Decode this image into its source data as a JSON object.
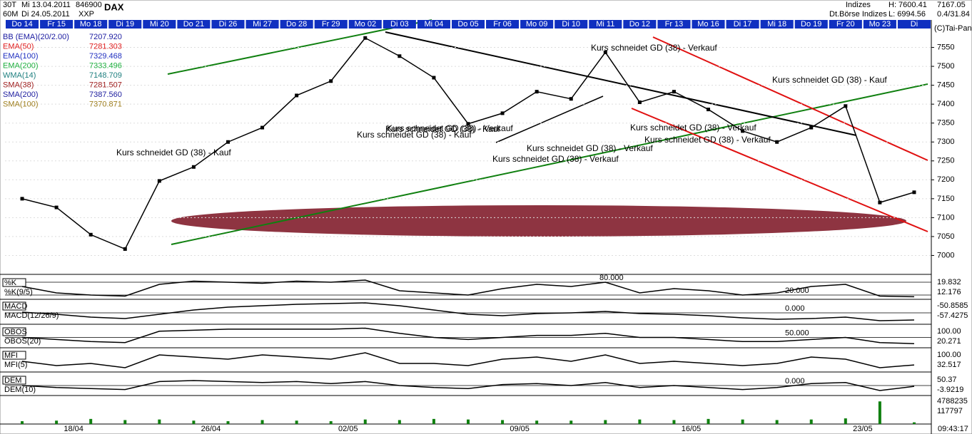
{
  "header": {
    "period": "30T",
    "from": "Mi 13.04.2011",
    "wkn": "846900",
    "symbol": "DAX",
    "interval": "60M",
    "to": "Di 24.05.2011",
    "exchange": "XXP",
    "group": "Indizes",
    "high": "H: 7600.41",
    "last": "7167.05",
    "source": "Dt.Börse Indizes",
    "low": "L: 6994.56",
    "change": "0.4/31.84",
    "copyright": "(C)Tai-Pan",
    "time": "09:43:17"
  },
  "chart_data": [
    {
      "type": "line",
      "color": "#000000",
      "categories": [
        "Do 14",
        "Fr 15",
        "Mo 18",
        "Di 19",
        "Mi 20",
        "Do 21",
        "Di 26",
        "Mi 27",
        "Do 28",
        "Fr 29",
        "Mo 02",
        "Di 03",
        "Mi 04",
        "Do 05",
        "Fr 06",
        "Mo 09",
        "Di 10",
        "Mi 11",
        "Do 12",
        "Fr 13",
        "Mo 16",
        "Di 17",
        "Mi 18",
        "Do 19",
        "Fr 20",
        "Mo 23",
        "Di"
      ],
      "values": [
        7150,
        7127,
        7055,
        7017,
        7197,
        7234,
        7300,
        7338,
        7423,
        7461,
        7575,
        7527,
        7470,
        7348,
        7376,
        7433,
        7414,
        7537,
        7405,
        7433,
        7386,
        7329,
        7300,
        7338,
        7395,
        7140,
        7167
      ],
      "ylim": [
        6950,
        7600
      ],
      "yticks": [
        7000,
        7050,
        7100,
        7150,
        7200,
        7250,
        7300,
        7350,
        7400,
        7450,
        7500,
        7550
      ],
      "grid": true,
      "date_labels": [
        "18/04",
        "26/04",
        "02/05",
        "09/05",
        "16/05",
        "23/05"
      ],
      "legend": [
        {
          "label": "BB (EMA)(20/2.00)",
          "value": "7207.920",
          "color": "#1a1aa0"
        },
        {
          "label": "EMA(50)",
          "value": "7281.303",
          "color": "#e02020"
        },
        {
          "label": "EMA(100)",
          "value": "7329.468",
          "color": "#2030c0"
        },
        {
          "label": "EMA(200)",
          "value": "7333.496",
          "color": "#20b040"
        },
        {
          "label": "WMA(14)",
          "value": "7148.709",
          "color": "#208080"
        },
        {
          "label": "SMA(38)",
          "value": "7281.507",
          "color": "#a02020"
        },
        {
          "label": "SMA(200)",
          "value": "7387.560",
          "color": "#2020a0"
        },
        {
          "label": "SMA(100)",
          "value": "7370.871",
          "color": "#a08020"
        }
      ],
      "annotations": [
        "Kurs schneidet GD (38) - Kauf",
        "Kurs schneidet GD (38) - Kauf",
        "Kurs schneidet GD (38) - Verkauf",
        "Kurs schneidet GD (38) - Verkauf",
        "Kurs schneidet GD (38) - Kauf",
        "Kurs schneidet GD (38) - Verkauf",
        "Kurs schneidet GD (38) - Verkauf",
        "Kurs schneidet GD (38) - Verkauf",
        "Kurs schneidet GD (38) - Kauf",
        "Kurs schneidet GD (38) - Verkauf"
      ]
    },
    {
      "type": "line",
      "title": "%K",
      "label": "%K(9/5)",
      "color": "#000000",
      "ylim": [
        0,
        100
      ],
      "values": [
        60,
        30,
        20,
        15,
        70,
        85,
        80,
        75,
        85,
        80,
        90,
        40,
        30,
        20,
        50,
        70,
        60,
        80,
        30,
        50,
        40,
        20,
        30,
        60,
        70,
        15,
        12
      ],
      "levels": [
        {
          "value": 80,
          "label": "80.000"
        },
        {
          "value": 20,
          "label": "20.000"
        }
      ],
      "right_labels": [
        "19.832",
        "12.176"
      ]
    },
    {
      "type": "line",
      "title": "MACD",
      "label": "MACD(12/26/9)",
      "color": "#000000",
      "ylim": [
        -80,
        80
      ],
      "values": [
        5,
        -10,
        -30,
        -40,
        -10,
        20,
        40,
        50,
        60,
        65,
        70,
        50,
        20,
        -10,
        -20,
        -5,
        0,
        10,
        -5,
        -10,
        -20,
        -35,
        -45,
        -40,
        -30,
        -55,
        -50
      ],
      "levels": [
        {
          "value": 0,
          "label": "0.000"
        }
      ],
      "right_labels": [
        "-50.8585",
        "-57.4275"
      ]
    },
    {
      "type": "line",
      "title": "OBOS",
      "label": "OBOS(20)",
      "color": "#000000",
      "ylim": [
        0,
        100
      ],
      "values": [
        50,
        40,
        30,
        25,
        80,
        85,
        90,
        90,
        90,
        90,
        95,
        70,
        50,
        40,
        50,
        60,
        60,
        70,
        50,
        50,
        40,
        30,
        30,
        40,
        50,
        25,
        20
      ],
      "levels": [
        {
          "value": 50,
          "label": "50.000"
        }
      ],
      "right_labels": [
        "100.00",
        "20.271"
      ]
    },
    {
      "type": "line",
      "title": "MFI",
      "label": "MFI(5)",
      "color": "#000000",
      "ylim": [
        0,
        100
      ],
      "values": [
        50,
        30,
        40,
        20,
        80,
        70,
        60,
        80,
        70,
        60,
        90,
        40,
        40,
        30,
        60,
        70,
        50,
        80,
        40,
        50,
        40,
        30,
        40,
        70,
        60,
        20,
        33
      ],
      "levels": [],
      "right_labels": [
        "100.00",
        "32.517"
      ]
    },
    {
      "type": "line",
      "title": "DEM",
      "label": "DEM(10)",
      "color": "#000000",
      "ylim": [
        -50,
        50
      ],
      "values": [
        0,
        -10,
        -15,
        -20,
        20,
        25,
        20,
        15,
        20,
        10,
        20,
        0,
        -10,
        -15,
        5,
        10,
        0,
        15,
        -10,
        0,
        -10,
        -20,
        -10,
        10,
        15,
        -25,
        -4
      ],
      "levels": [
        {
          "value": 0,
          "label": "0.000"
        }
      ],
      "right_labels": [
        "50.37",
        "-3.9219"
      ]
    },
    {
      "type": "bar",
      "color": "#108010",
      "ylim": [
        0,
        4788235
      ],
      "values": [
        500000,
        600000,
        900000,
        700000,
        800000,
        600000,
        500000,
        700000,
        600000,
        500000,
        800000,
        700000,
        900000,
        800000,
        700000,
        600000,
        600000,
        700000,
        800000,
        700000,
        900000,
        800000,
        700000,
        800000,
        1000000,
        4000000,
        300000
      ],
      "levels": [],
      "right_labels": [
        "4788235",
        "117797"
      ]
    }
  ]
}
